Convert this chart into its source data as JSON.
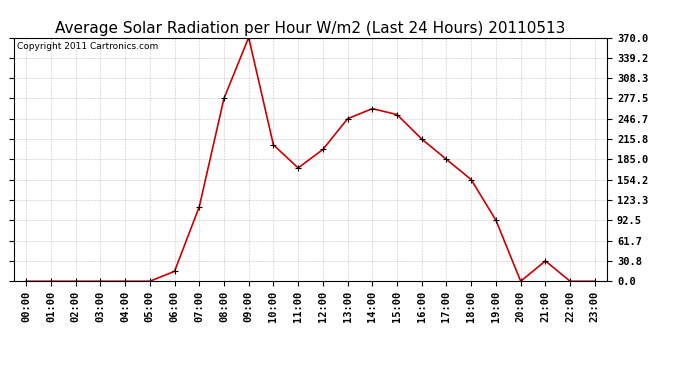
{
  "title": "Average Solar Radiation per Hour W/m2 (Last 24 Hours) 20110513",
  "copyright": "Copyright 2011 Cartronics.com",
  "hours": [
    "00:00",
    "01:00",
    "02:00",
    "03:00",
    "04:00",
    "05:00",
    "06:00",
    "07:00",
    "08:00",
    "09:00",
    "10:00",
    "11:00",
    "12:00",
    "13:00",
    "14:00",
    "15:00",
    "16:00",
    "17:00",
    "18:00",
    "19:00",
    "20:00",
    "21:00",
    "22:00",
    "23:00"
  ],
  "values": [
    0.0,
    0.0,
    0.0,
    0.0,
    0.0,
    0.0,
    15.0,
    113.0,
    277.5,
    370.0,
    207.0,
    172.0,
    200.0,
    246.7,
    262.0,
    253.0,
    215.8,
    185.0,
    154.2,
    92.5,
    0.0,
    30.8,
    0.0,
    0.0
  ],
  "line_color": "#cc0000",
  "marker": "+",
  "marker_color": "#000000",
  "bg_color": "#ffffff",
  "grid_color": "#aaaaaa",
  "yticks": [
    0.0,
    30.8,
    61.7,
    92.5,
    123.3,
    154.2,
    185.0,
    215.8,
    246.7,
    277.5,
    308.3,
    339.2,
    370.0
  ],
  "ymax": 370.0,
  "ymin": 0.0,
  "title_fontsize": 11,
  "copyright_fontsize": 6.5,
  "tick_fontsize": 7.5,
  "ylabel_fontsize": 8
}
